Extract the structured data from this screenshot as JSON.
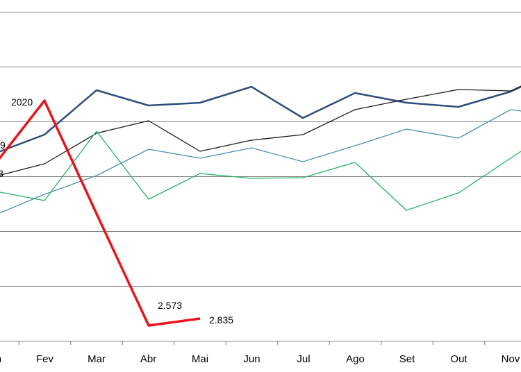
{
  "chart_data": {
    "type": "line",
    "categories": [
      "Jan",
      "Fev",
      "Mar",
      "Abr",
      "Mai",
      "Jun",
      "Jul",
      "Ago",
      "Set",
      "Out",
      "Nov"
    ],
    "grid": true,
    "ylim": [
      0,
      6
    ],
    "series": [
      {
        "color": "#c00000",
        "values": [
          null,
          null,
          null,
          null,
          null,
          null,
          null,
          null,
          null,
          null,
          null
        ],
        "_note": ""
      }
    ],
    "annotations": [
      "2020",
      "2.573",
      "2.835",
      "9",
      "3"
    ]
  }
}
